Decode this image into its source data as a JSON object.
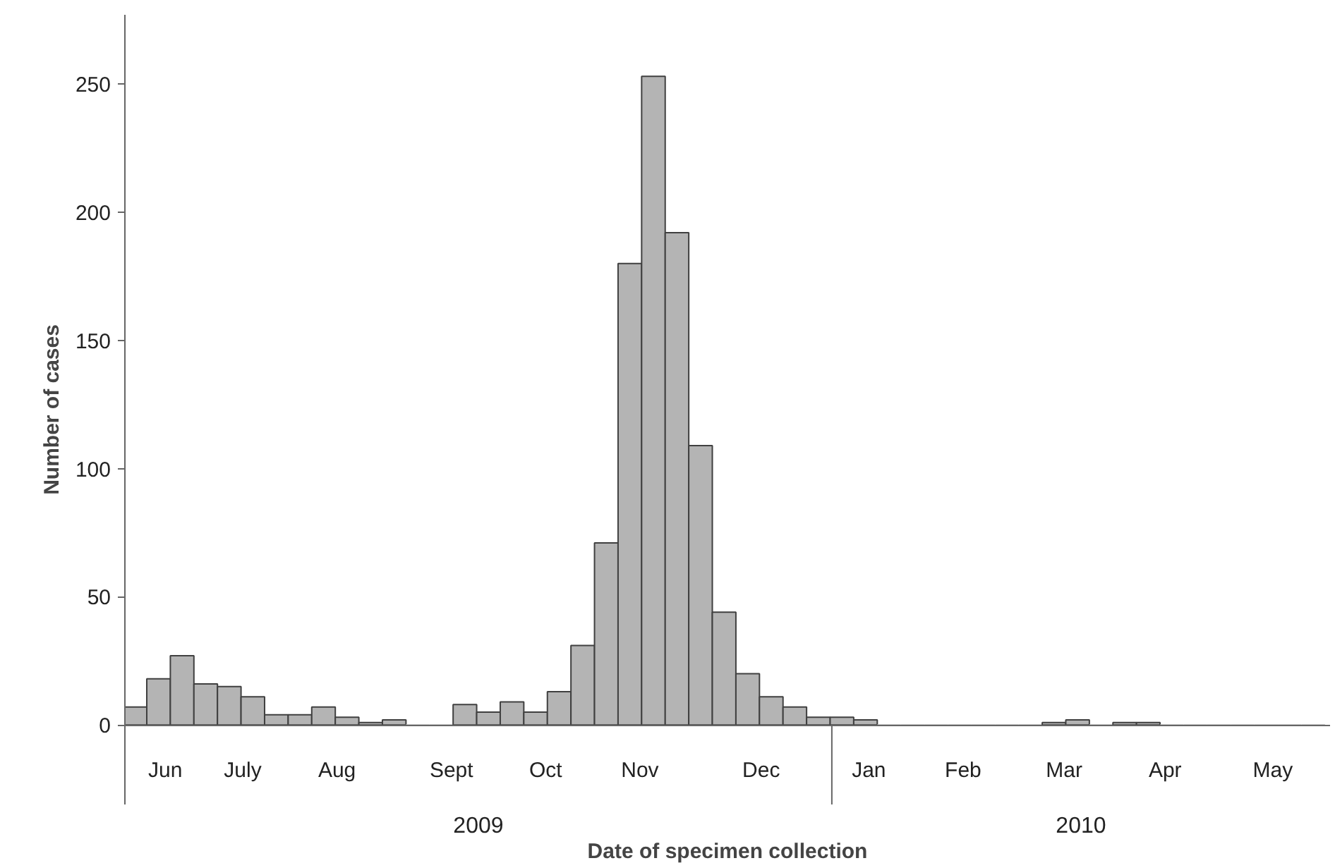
{
  "chart_data": {
    "type": "bar",
    "xlabel": "Date of specimen collection",
    "ylabel": "Number of cases",
    "x": [
      "2009-06-08",
      "2009-06-15",
      "2009-06-22",
      "2009-06-29",
      "2009-07-06",
      "2009-07-13",
      "2009-07-20",
      "2009-07-27",
      "2009-08-03",
      "2009-08-10",
      "2009-08-17",
      "2009-08-24",
      "2009-08-31",
      "2009-09-07",
      "2009-09-14",
      "2009-09-21",
      "2009-09-28",
      "2009-10-05",
      "2009-10-12",
      "2009-10-19",
      "2009-10-26",
      "2009-11-02",
      "2009-11-09",
      "2009-11-16",
      "2009-11-23",
      "2009-11-30",
      "2009-12-07",
      "2009-12-14",
      "2009-12-21",
      "2009-12-28",
      "2010-01-04",
      "2010-01-11",
      "2010-01-18",
      "2010-01-25",
      "2010-02-01",
      "2010-02-08",
      "2010-02-15",
      "2010-02-22",
      "2010-03-01",
      "2010-03-08",
      "2010-03-15",
      "2010-03-22",
      "2010-03-29",
      "2010-04-05",
      "2010-04-12",
      "2010-04-19",
      "2010-04-26",
      "2010-05-03",
      "2010-05-10",
      "2010-05-17",
      "2010-05-24"
    ],
    "values": [
      7,
      18,
      27,
      16,
      15,
      11,
      4,
      4,
      7,
      3,
      1,
      2,
      0,
      0,
      8,
      5,
      9,
      5,
      13,
      31,
      71,
      180,
      253,
      192,
      109,
      44,
      20,
      11,
      7,
      3,
      3,
      2,
      0,
      0,
      0,
      0,
      0,
      0,
      0,
      1,
      2,
      0,
      1,
      1,
      0,
      0,
      0,
      0,
      0,
      0,
      0
    ],
    "color": "#b4b4b4",
    "xlim": [
      "2009-06-05",
      "2010-05-29"
    ],
    "xticks": [
      {
        "value": "2009-06-17",
        "label": "Jun"
      },
      {
        "value": "2009-07-10",
        "label": "July"
      },
      {
        "value": "2009-08-07",
        "label": "Aug"
      },
      {
        "value": "2009-09-10",
        "label": "Sept"
      },
      {
        "value": "2009-10-08",
        "label": "Oct"
      },
      {
        "value": "2009-11-05",
        "label": "Nov"
      },
      {
        "value": "2009-12-11",
        "label": "Dec"
      },
      {
        "value": "2010-01-12",
        "label": "Jan"
      },
      {
        "value": "2010-02-09",
        "label": "Feb"
      },
      {
        "value": "2010-03-11",
        "label": "Mar"
      },
      {
        "value": "2010-04-10",
        "label": "Apr"
      },
      {
        "value": "2010-05-12",
        "label": "May"
      }
    ],
    "ylim": [
      -31,
      277
    ],
    "yticks": [
      0,
      50,
      100,
      150,
      200,
      250
    ],
    "ref_lines": [
      {
        "axis": "x",
        "value": "2010-01-01"
      }
    ],
    "annotations": [
      "2009",
      "2010"
    ]
  }
}
